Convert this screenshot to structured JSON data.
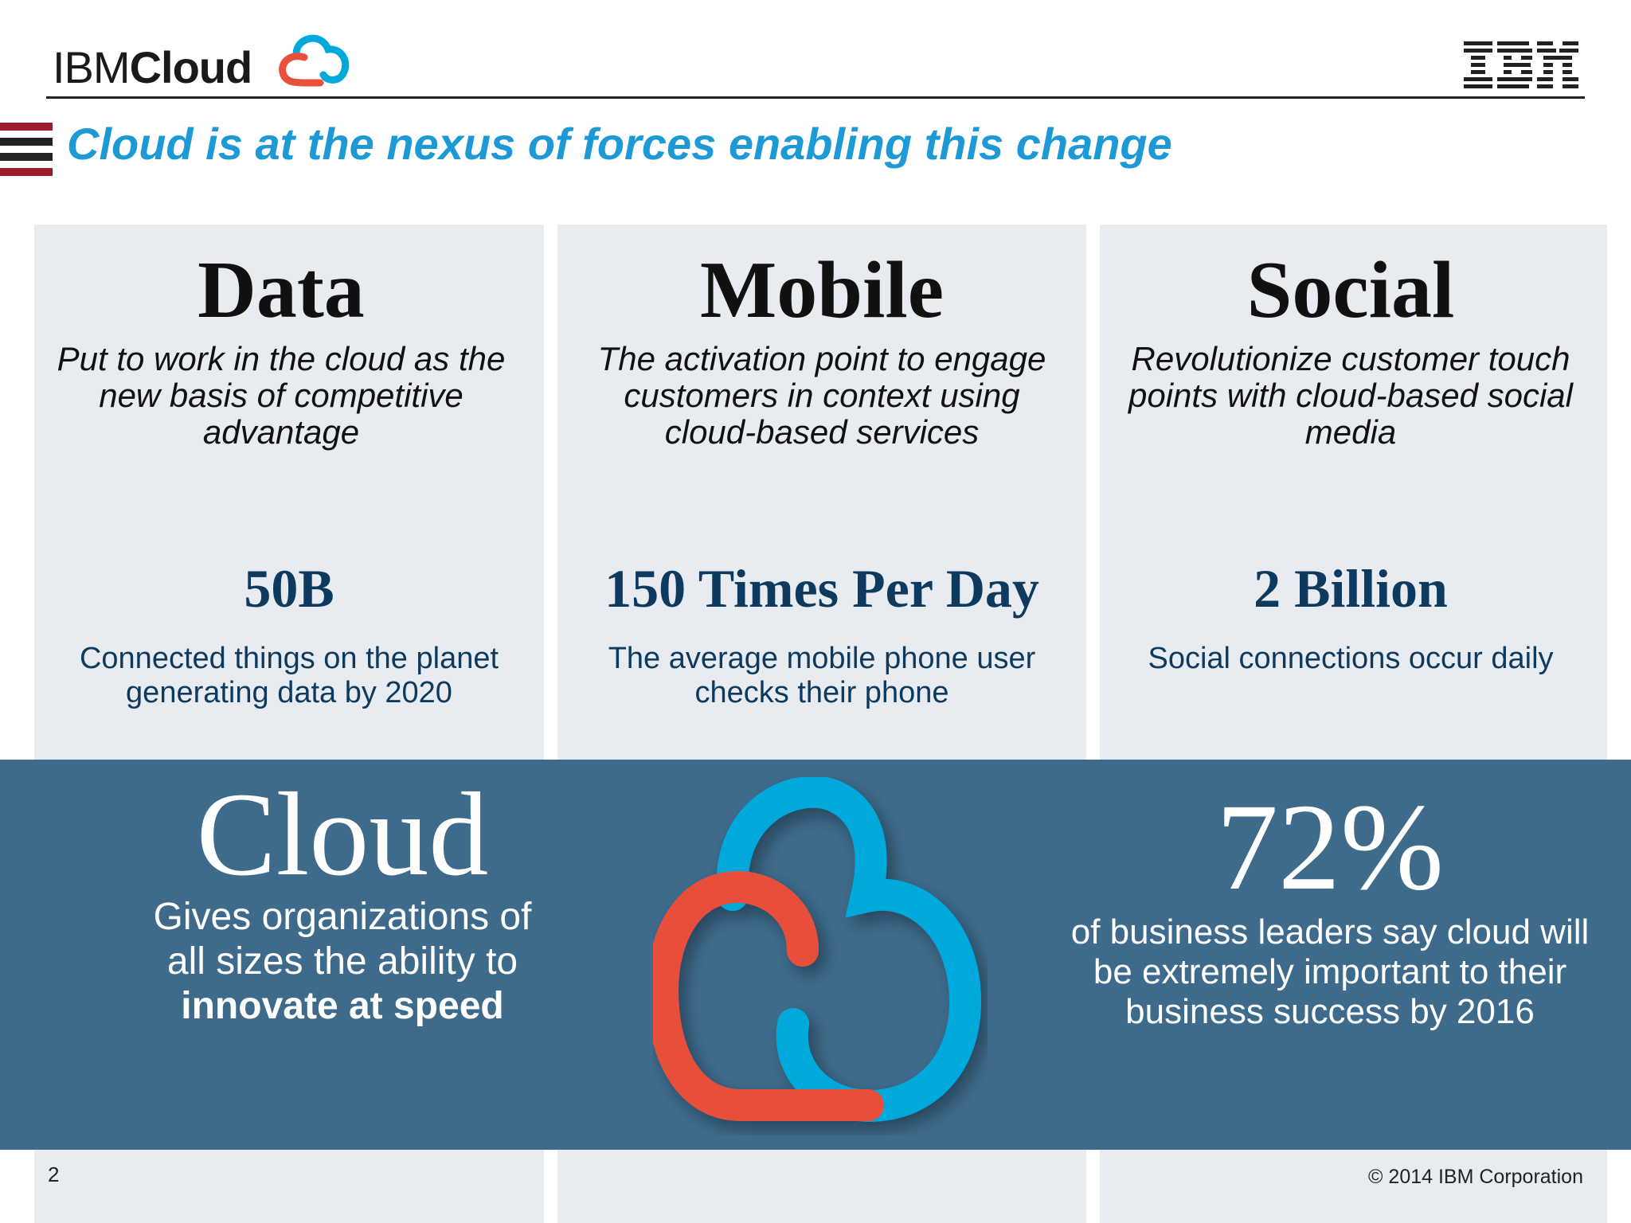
{
  "header": {
    "brand_light": "IBM",
    "brand_bold": "Cloud",
    "title": "Cloud is at the nexus of forces enabling this change"
  },
  "columns": [
    {
      "title": "Data",
      "description": "Put to work in the cloud as the new basis of competitive advantage",
      "stat": "50B",
      "note": "Connected things on the planet generating data by 2020"
    },
    {
      "title": "Mobile",
      "description": "The activation point to engage customers in context using cloud-based services",
      "stat": "150 Times Per Day",
      "note": "The average mobile phone user checks their phone"
    },
    {
      "title": "Social",
      "description": "Revolutionize customer touch points with cloud-based social media",
      "stat": "2 Billion",
      "note": "Social connections occur daily"
    }
  ],
  "band": {
    "heading": "Cloud",
    "desc_line1": "Gives organizations of",
    "desc_line2": "all sizes the ability to",
    "desc_strong": "innovate at speed",
    "percent": "72%",
    "percent_desc": "of business leaders say cloud will be extremely important to their business success by 2016"
  },
  "colors": {
    "accent_blue": "#1d9ad6",
    "band": "#3e6b8c",
    "cloud_blue": "#00a9dc",
    "cloud_red": "#e8503a",
    "stat_navy": "#0d3a5e",
    "column_bg": "#e8ecf0"
  },
  "footer": {
    "page_number": "2",
    "copyright": "© 2014 IBM Corporation"
  }
}
